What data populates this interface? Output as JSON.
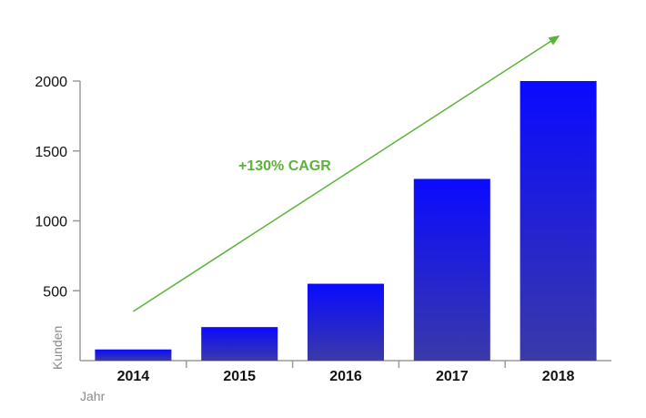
{
  "chart_data": {
    "type": "bar",
    "categories": [
      "2014",
      "2015",
      "2016",
      "2017",
      "2018"
    ],
    "values": [
      80,
      240,
      550,
      1300,
      2000
    ],
    "xlabel": "Jahr",
    "ylabel": "Kunden",
    "ylim": [
      0,
      2000
    ],
    "yticks": [
      500,
      1000,
      1500,
      2000
    ],
    "grid": false,
    "annotation": {
      "text": "+130% CAGR",
      "color": "#5BB33A"
    },
    "colors": {
      "bar_top": "#0A0AFF",
      "bar_bottom": "#3A3AA8",
      "axis": "#9a9a9a",
      "arrow": "#5BB33A"
    }
  }
}
